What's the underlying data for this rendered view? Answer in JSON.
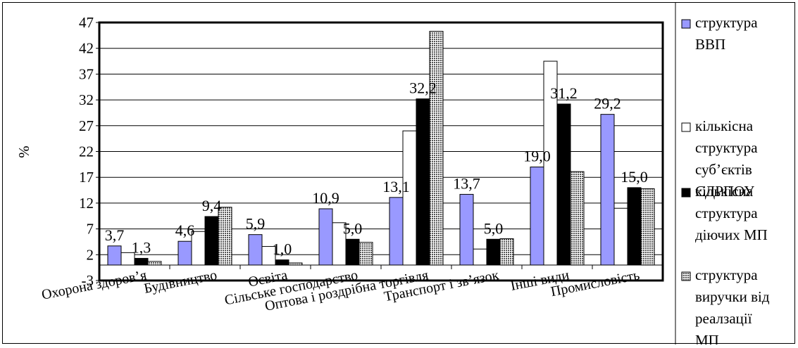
{
  "chart_data": {
    "type": "bar",
    "ylabel": "%",
    "ylim": [
      -3,
      47
    ],
    "yticks": [
      -3,
      2,
      7,
      12,
      17,
      22,
      27,
      32,
      37,
      42,
      47
    ],
    "grid": true,
    "legend_position": "right",
    "categories": [
      "Охорона здоров’я",
      "Будівництво",
      "Освіта",
      "Сільське господарство",
      "Оптова і роздрібна торгівля",
      "Транспорт і зв’язок",
      "Інші види",
      "Промисловість"
    ],
    "series": [
      {
        "name": "структура ВВП",
        "color": "#9999ff",
        "pattern": "solid",
        "values": [
          3.7,
          4.6,
          5.9,
          10.9,
          13.1,
          13.7,
          19.0,
          29.2
        ]
      },
      {
        "name": "кількісна структура суб’єктів ЄДРПОУ",
        "color": "#ffffff",
        "pattern": "solid",
        "values": [
          2.4,
          6.5,
          3.6,
          8.2,
          26.0,
          3.1,
          39.5,
          11.0
        ]
      },
      {
        "name": "кількісна структура діючих МП",
        "color": "#000000",
        "pattern": "solid",
        "values": [
          1.3,
          9.4,
          1.0,
          5.0,
          32.2,
          5.0,
          31.2,
          15.0
        ]
      },
      {
        "name": "структура виручки від реалзації МП",
        "color": "#aaaaaa",
        "pattern": "dots",
        "values": [
          0.7,
          11.2,
          0.4,
          4.4,
          45.3,
          5.1,
          18.1,
          14.8
        ]
      }
    ],
    "data_labels": [
      {
        "category": 0,
        "series": 0,
        "text": "3,7"
      },
      {
        "category": 0,
        "series": 2,
        "text": "1,3"
      },
      {
        "category": 1,
        "series": 0,
        "text": "4,6"
      },
      {
        "category": 1,
        "series": 2,
        "text": "9,4"
      },
      {
        "category": 2,
        "series": 0,
        "text": "5,9"
      },
      {
        "category": 2,
        "series": 2,
        "text": "1,0"
      },
      {
        "category": 3,
        "series": 0,
        "text": "10,9"
      },
      {
        "category": 3,
        "series": 2,
        "text": "5,0"
      },
      {
        "category": 4,
        "series": 0,
        "text": "13,1"
      },
      {
        "category": 4,
        "series": 2,
        "text": "32,2"
      },
      {
        "category": 5,
        "series": 0,
        "text": "13,7"
      },
      {
        "category": 5,
        "series": 2,
        "text": "5,0"
      },
      {
        "category": 6,
        "series": 0,
        "text": "19,0"
      },
      {
        "category": 6,
        "series": 2,
        "text": "31,2"
      },
      {
        "category": 7,
        "series": 0,
        "text": "29,2"
      },
      {
        "category": 7,
        "series": 2,
        "text": "15,0"
      }
    ]
  }
}
